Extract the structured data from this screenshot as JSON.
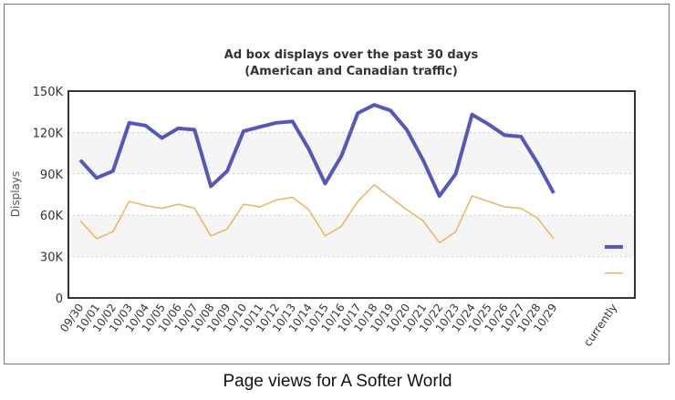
{
  "chart_data": {
    "type": "line",
    "title": "Ad box displays over the past 30 days",
    "subtitle": "(American and Canadian traffic)",
    "xlabel": "",
    "ylabel": "Displays",
    "ylim": [
      0,
      150000
    ],
    "yticks": [
      "0",
      "30K",
      "60K",
      "90K",
      "120K",
      "150K"
    ],
    "ytick_values": [
      0,
      30000,
      60000,
      90000,
      120000,
      150000
    ],
    "grid": true,
    "categories": [
      "09/30",
      "10/01",
      "10/02",
      "10/03",
      "10/04",
      "10/05",
      "10/06",
      "10/07",
      "10/08",
      "10/09",
      "10/10",
      "10/11",
      "10/12",
      "10/13",
      "10/14",
      "10/15",
      "10/16",
      "10/17",
      "10/18",
      "10/19",
      "10/20",
      "10/21",
      "10/22",
      "10/23",
      "10/24",
      "10/25",
      "10/26",
      "10/27",
      "10/28",
      "10/29"
    ],
    "extra_category": "currently",
    "series": [
      {
        "color": "#5558b8",
        "values": [
          100000,
          87000,
          92000,
          127000,
          125000,
          116000,
          123000,
          122000,
          81000,
          92000,
          121000,
          124000,
          127000,
          128000,
          108000,
          83000,
          103000,
          134000,
          140000,
          136000,
          122000,
          100000,
          74000,
          90000,
          133000,
          126000,
          118000,
          117000,
          98000,
          76000
        ],
        "current": 37000
      },
      {
        "color": "#e8b65a",
        "values": [
          56000,
          43000,
          48000,
          70000,
          67000,
          65000,
          68000,
          65000,
          45000,
          50000,
          68000,
          66000,
          71000,
          73000,
          64000,
          45000,
          52000,
          70000,
          82000,
          73000,
          64000,
          56000,
          40000,
          48000,
          74000,
          70000,
          66000,
          65000,
          58000,
          43000
        ],
        "current": 18000
      }
    ]
  },
  "caption": "Page views for A Softer World"
}
